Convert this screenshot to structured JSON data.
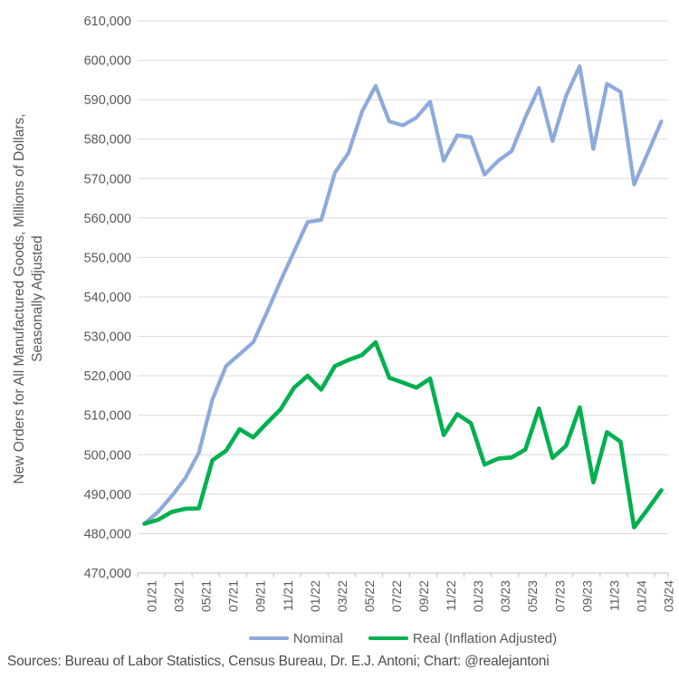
{
  "chart_data": {
    "type": "line",
    "title": "",
    "ylabel_line1": "New Orders for All Manufactured Goods, Millions of Dollars,",
    "ylabel_line2": "Seasonally Adjusted",
    "xlabel": "",
    "grid": true,
    "legend_position": "bottom",
    "ylim": [
      470000,
      610000
    ],
    "y_tick_step": 10000,
    "y_tick_labels": [
      "470,000",
      "480,000",
      "490,000",
      "500,000",
      "510,000",
      "520,000",
      "530,000",
      "540,000",
      "550,000",
      "560,000",
      "570,000",
      "580,000",
      "590,000",
      "600,000",
      "610,000"
    ],
    "categories": [
      "01/21",
      "02/21",
      "03/21",
      "04/21",
      "05/21",
      "06/21",
      "07/21",
      "08/21",
      "09/21",
      "10/21",
      "11/21",
      "12/21",
      "01/22",
      "02/22",
      "03/22",
      "04/22",
      "05/22",
      "06/22",
      "07/22",
      "08/22",
      "09/22",
      "10/22",
      "11/22",
      "12/22",
      "01/23",
      "02/23",
      "03/23",
      "04/23",
      "05/23",
      "06/23",
      "07/23",
      "08/23",
      "09/23",
      "10/23",
      "11/23",
      "12/23",
      "01/24",
      "02/24",
      "03/24"
    ],
    "x_tick_labels": [
      "01/21",
      "03/21",
      "05/21",
      "07/21",
      "09/21",
      "11/21",
      "01/22",
      "03/22",
      "05/22",
      "07/22",
      "09/22",
      "11/22",
      "01/23",
      "03/23",
      "05/23",
      "07/23",
      "09/23",
      "11/23",
      "01/24",
      "03/24"
    ],
    "series": [
      {
        "name": "Nominal",
        "color": "#8EA9DB",
        "values": [
          482500,
          485500,
          489500,
          494000,
          500500,
          514000,
          522500,
          525500,
          528500,
          536000,
          544000,
          551500,
          559000,
          559500,
          571500,
          576500,
          587000,
          593500,
          584500,
          583500,
          585500,
          589500,
          574500,
          581000,
          580500,
          571000,
          574500,
          577000,
          585500,
          593000,
          579500,
          591000,
          598500,
          577500,
          594000,
          592000,
          568500,
          576500,
          584500
        ]
      },
      {
        "name": "Real (Inflation Adjusted)",
        "color": "#00B050",
        "values": [
          482500,
          483500,
          485500,
          486300,
          486400,
          498600,
          501000,
          506500,
          504400,
          508000,
          511500,
          517000,
          520000,
          516500,
          522500,
          524000,
          525300,
          528500,
          519500,
          518300,
          517000,
          519300,
          505000,
          510300,
          508000,
          497500,
          499000,
          499300,
          501300,
          511700,
          499200,
          502300,
          512000,
          493000,
          505700,
          503300,
          481600,
          486200,
          491000
        ]
      }
    ]
  },
  "legend": {
    "items": [
      {
        "label": "Nominal",
        "color": "#8EA9DB"
      },
      {
        "label": "Real (Inflation Adjusted)",
        "color": "#00B050"
      }
    ]
  },
  "footer": {
    "sources": "Sources: Bureau of Labor Statistics, Census Bureau, Dr. E.J. Antoni; Chart: @realejantoni"
  },
  "colors": {
    "background": "#ffffff",
    "gridline": "#D9D9D9",
    "axis": "#BFBFBF",
    "tick_text": "#595959",
    "nominal": "#8EA9DB",
    "real": "#00B050"
  }
}
